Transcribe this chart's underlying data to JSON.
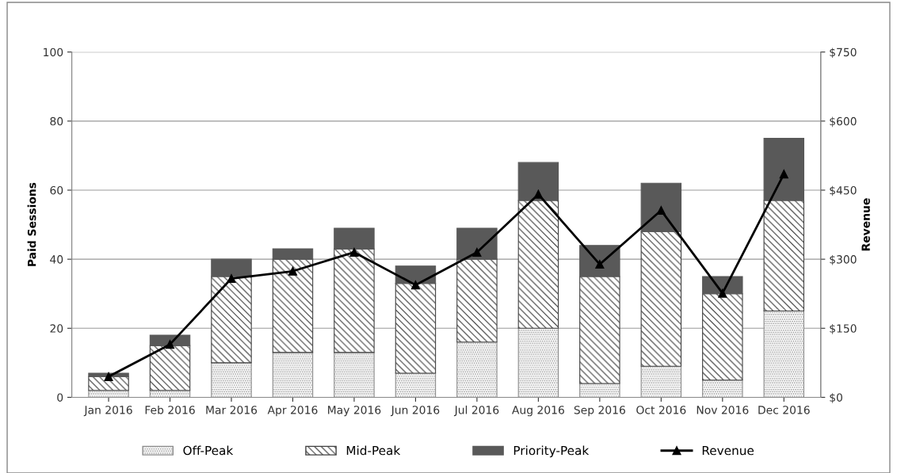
{
  "chart_data": {
    "type": "bar",
    "stacked": true,
    "ylabel": "Paid Sessions",
    "y2label": "Revenue",
    "categories": [
      "Jan 2016",
      "Feb 2016",
      "Mar 2016",
      "Apr 2016",
      "May 2016",
      "Jun 2016",
      "Jul 2016",
      "Aug 2016",
      "Sep 2016",
      "Oct 2016",
      "Nov 2016",
      "Dec 2016"
    ],
    "series": [
      {
        "name": "Off-Peak",
        "color": "#8c8c8c",
        "values": [
          2,
          2,
          10,
          13,
          13,
          7,
          16,
          20,
          4,
          9,
          5,
          25
        ]
      },
      {
        "name": "Mid-Peak",
        "color": "#404040",
        "values": [
          4,
          13,
          25,
          27,
          30,
          26,
          24,
          37,
          31,
          39,
          25,
          32
        ]
      },
      {
        "name": "Priority-Peak",
        "color": "#595959",
        "values": [
          1,
          3,
          5,
          3,
          6,
          5,
          9,
          11,
          9,
          14,
          5,
          18
        ]
      },
      {
        "name": "Revenue",
        "type": "line",
        "axis": "y2",
        "color": "#000000",
        "marker": "triangle",
        "values": [
          45,
          115,
          258,
          274,
          315,
          244,
          315,
          441,
          289,
          406,
          226,
          485
        ]
      }
    ],
    "ylim": [
      0,
      100
    ],
    "yticks": [
      0,
      20,
      40,
      60,
      80,
      100
    ],
    "y2lim": [
      0,
      750
    ],
    "y2ticks": [
      {
        "value": 0,
        "label": "$0"
      },
      {
        "value": 150,
        "label": "$150"
      },
      {
        "value": 300,
        "label": "$300"
      },
      {
        "value": 450,
        "label": "$450"
      },
      {
        "value": 600,
        "label": "$600"
      },
      {
        "value": 750,
        "label": "$750"
      }
    ],
    "grid": "y",
    "legend": "bottom"
  }
}
